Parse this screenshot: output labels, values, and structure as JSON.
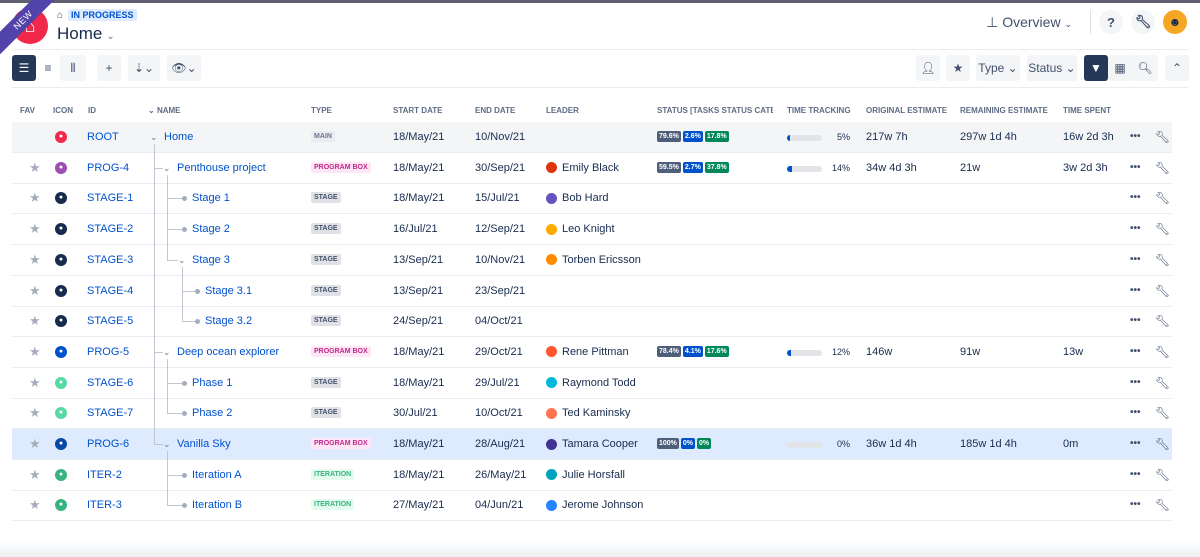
{
  "header": {
    "ribbon": "NEW",
    "status": "IN PROGRESS",
    "title": "Home",
    "view": "Overview"
  },
  "toolbar": {
    "type_label": "Type",
    "status_label": "Status"
  },
  "columns": {
    "fav": "FAV",
    "icon": "ICON",
    "id": "ID",
    "name": "NAME",
    "type": "TYPE",
    "start": "START DATE",
    "end": "END DATE",
    "leader": "LEADER",
    "status": "STATUS [TASKS STATUS CATE",
    "tracking": "TIME TRACKING",
    "orig": "ORIGINAL ESTIMATE",
    "rem": "REMAINING ESTIMATE",
    "spent": "TIME SPENT"
  },
  "colors": {
    "todo": "#505f79",
    "inprogress": "#0052cc",
    "done": "#00875a"
  },
  "rows": [
    {
      "id": "ROOT",
      "name": "Home",
      "level": 0,
      "kids": true,
      "type": "MAIN",
      "tc": "t-main",
      "start": "18/May/21",
      "end": "10/Nov/21",
      "leader": "",
      "icolor": "#f0284a",
      "status": [
        "79.6%",
        "2.6%",
        "17.8%"
      ],
      "progress": 5,
      "pct": "5%",
      "orig": "217w 7h",
      "rem": "297w 1d 4h",
      "spent": "16w 2d 3h"
    },
    {
      "id": "PROG-4",
      "name": "Penthouse project",
      "level": 1,
      "kids": true,
      "type": "PROGRAM BOX",
      "tc": "t-prog",
      "start": "18/May/21",
      "end": "30/Sep/21",
      "leader": "Emily Black",
      "lcolor": "#de350b",
      "icolor": "#9c4fb0",
      "status": [
        "59.5%",
        "2.7%",
        "37.8%"
      ],
      "progress": 14,
      "pct": "14%",
      "orig": "34w 4d 3h",
      "rem": "21w",
      "spent": "3w 2d 3h"
    },
    {
      "id": "STAGE-1",
      "name": "Stage 1",
      "level": 2,
      "type": "STAGE",
      "tc": "t-stage",
      "start": "18/May/21",
      "end": "15/Jul/21",
      "leader": "Bob Hard",
      "lcolor": "#6554c0",
      "icolor": "#172b4d"
    },
    {
      "id": "STAGE-2",
      "name": "Stage 2",
      "level": 2,
      "type": "STAGE",
      "tc": "t-stage",
      "start": "16/Jul/21",
      "end": "12/Sep/21",
      "leader": "Leo Knight",
      "lcolor": "#ffab00",
      "icolor": "#172b4d"
    },
    {
      "id": "STAGE-3",
      "name": "Stage 3",
      "level": 2,
      "kids": true,
      "type": "STAGE",
      "tc": "t-stage",
      "start": "13/Sep/21",
      "end": "10/Nov/21",
      "leader": "Torben Ericsson",
      "lcolor": "#ff8b00",
      "icolor": "#172b4d"
    },
    {
      "id": "STAGE-4",
      "name": "Stage 3.1",
      "level": 3,
      "type": "STAGE",
      "tc": "t-stage",
      "start": "13/Sep/21",
      "end": "23/Sep/21",
      "leader": "",
      "icolor": "#172b4d"
    },
    {
      "id": "STAGE-5",
      "name": "Stage 3.2",
      "level": 3,
      "type": "STAGE",
      "tc": "t-stage",
      "start": "24/Sep/21",
      "end": "04/Oct/21",
      "leader": "",
      "icolor": "#172b4d"
    },
    {
      "id": "PROG-5",
      "name": "Deep ocean explorer",
      "level": 1,
      "kids": true,
      "type": "PROGRAM BOX",
      "tc": "t-prog",
      "start": "18/May/21",
      "end": "29/Oct/21",
      "leader": "Rene Pittman",
      "lcolor": "#ff5630",
      "icolor": "#0052cc",
      "status": [
        "78.4%",
        "4.1%",
        "17.6%"
      ],
      "progress": 12,
      "pct": "12%",
      "orig": "146w",
      "rem": "91w",
      "spent": "13w"
    },
    {
      "id": "STAGE-6",
      "name": "Phase 1",
      "level": 2,
      "type": "STAGE",
      "tc": "t-stage",
      "start": "18/May/21",
      "end": "29/Jul/21",
      "leader": "Raymond Todd",
      "lcolor": "#00b8d9",
      "icolor": "#57d9a3"
    },
    {
      "id": "STAGE-7",
      "name": "Phase 2",
      "level": 2,
      "type": "STAGE",
      "tc": "t-stage",
      "start": "30/Jul/21",
      "end": "10/Oct/21",
      "leader": "Ted Kaminsky",
      "lcolor": "#ff7452",
      "icolor": "#57d9a3"
    },
    {
      "id": "PROG-6",
      "name": "Vanilla Sky",
      "level": 1,
      "kids": true,
      "sel": true,
      "type": "PROGRAM BOX",
      "tc": "t-prog",
      "start": "18/May/21",
      "end": "28/Aug/21",
      "leader": "Tamara Cooper",
      "lcolor": "#403294",
      "icolor": "#0747a6",
      "status": [
        "100%",
        "0%",
        "0%"
      ],
      "progress": 0,
      "pct": "0%",
      "orig": "36w 1d 4h",
      "rem": "185w 1d 4h",
      "spent": "0m"
    },
    {
      "id": "ITER-2",
      "name": "Iteration A",
      "level": 2,
      "type": "ITERATION",
      "tc": "t-iter",
      "start": "18/May/21",
      "end": "26/May/21",
      "leader": "Julie Horsfall",
      "lcolor": "#00a3bf",
      "icolor": "#36b37e"
    },
    {
      "id": "ITER-3",
      "name": "Iteration B",
      "level": 2,
      "type": "ITERATION",
      "tc": "t-iter",
      "start": "27/May/21",
      "end": "04/Jun/21",
      "leader": "Jerome Johnson",
      "lcolor": "#2684ff",
      "icolor": "#36b37e"
    }
  ]
}
